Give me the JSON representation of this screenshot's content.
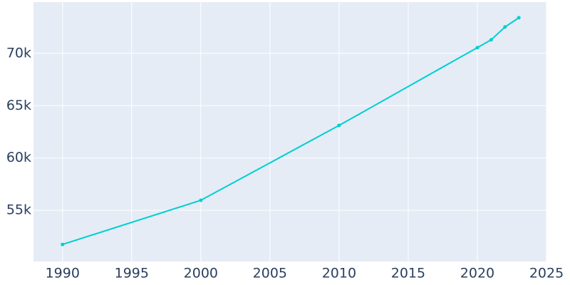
{
  "chart_data": {
    "type": "line",
    "x": [
      1990,
      2000,
      2010,
      2020,
      2021,
      2022,
      2023
    ],
    "series": [
      {
        "color": "#00cfcf",
        "values": [
          51730,
          55950,
          63110,
          70550,
          71300,
          72520,
          73410
        ]
      }
    ],
    "xlim": [
      1987.9,
      2025
    ],
    "xticks": [
      1990,
      1995,
      2000,
      2005,
      2010,
      2015,
      2020,
      2025
    ],
    "ylim": [
      50100,
      74900
    ],
    "yticks": [
      {
        "value": 55000,
        "label": "55k"
      },
      {
        "value": 60000,
        "label": "60k"
      },
      {
        "value": 65000,
        "label": "65k"
      },
      {
        "value": 70000,
        "label": "70k"
      }
    ],
    "grid": true,
    "background": "#e5ecf6"
  }
}
